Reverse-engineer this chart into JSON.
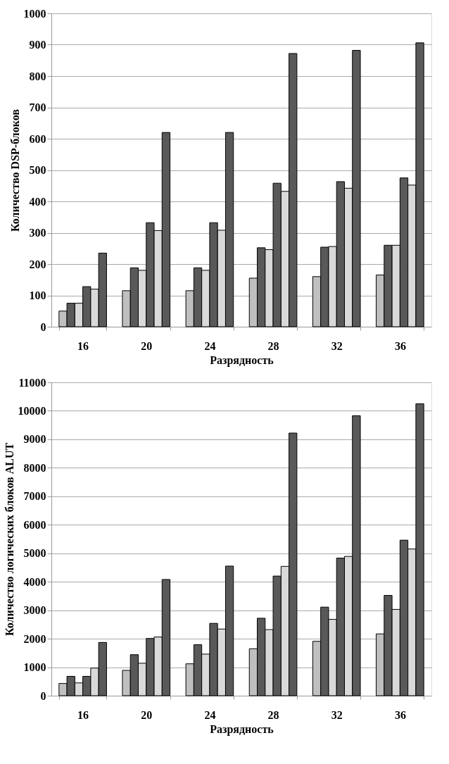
{
  "chart_data": [
    {
      "type": "bar",
      "ylabel": "Количество DSP-блоков",
      "xlabel": "Разрядность",
      "categories": [
        "16",
        "20",
        "24",
        "28",
        "32",
        "36"
      ],
      "ylim": [
        0,
        1000
      ],
      "yticks": [
        0,
        100,
        200,
        300,
        400,
        500,
        600,
        700,
        800,
        900,
        1000
      ],
      "grid": "y",
      "series": [
        {
          "color": "#bfbfbf",
          "values": [
            50,
            115,
            115,
            155,
            160,
            165
          ]
        },
        {
          "color": "#595959",
          "values": [
            75,
            188,
            188,
            252,
            254,
            260
          ]
        },
        {
          "color": "#d9d9d9",
          "values": [
            75,
            180,
            180,
            246,
            256,
            260
          ]
        },
        {
          "color": "#595959",
          "values": [
            128,
            332,
            332,
            458,
            463,
            475
          ]
        },
        {
          "color": "#d9d9d9",
          "values": [
            120,
            307,
            308,
            432,
            442,
            452
          ]
        },
        {
          "color": "#595959",
          "values": [
            235,
            620,
            620,
            872,
            882,
            906
          ]
        }
      ]
    },
    {
      "type": "bar",
      "ylabel": "Количество логических блоков ALUT",
      "xlabel": "Разрядность",
      "categories": [
        "16",
        "20",
        "24",
        "28",
        "32",
        "36"
      ],
      "ylim": [
        0,
        11000
      ],
      "yticks": [
        0,
        1000,
        2000,
        3000,
        4000,
        5000,
        6000,
        7000,
        8000,
        9000,
        10000,
        11000
      ],
      "grid": "y",
      "series": [
        {
          "color": "#bfbfbf",
          "values": [
            430,
            890,
            1120,
            1650,
            1910,
            2170
          ]
        },
        {
          "color": "#595959",
          "values": [
            680,
            1440,
            1790,
            2720,
            3110,
            3520
          ]
        },
        {
          "color": "#d9d9d9",
          "values": [
            450,
            1140,
            1460,
            2320,
            2680,
            3030
          ]
        },
        {
          "color": "#595959",
          "values": [
            680,
            2010,
            2540,
            4200,
            4830,
            5460
          ]
        },
        {
          "color": "#d9d9d9",
          "values": [
            970,
            2060,
            2340,
            4540,
            4890,
            5150
          ]
        },
        {
          "color": "#595959",
          "values": [
            1870,
            4080,
            4550,
            9220,
            9830,
            10250
          ]
        }
      ]
    }
  ]
}
